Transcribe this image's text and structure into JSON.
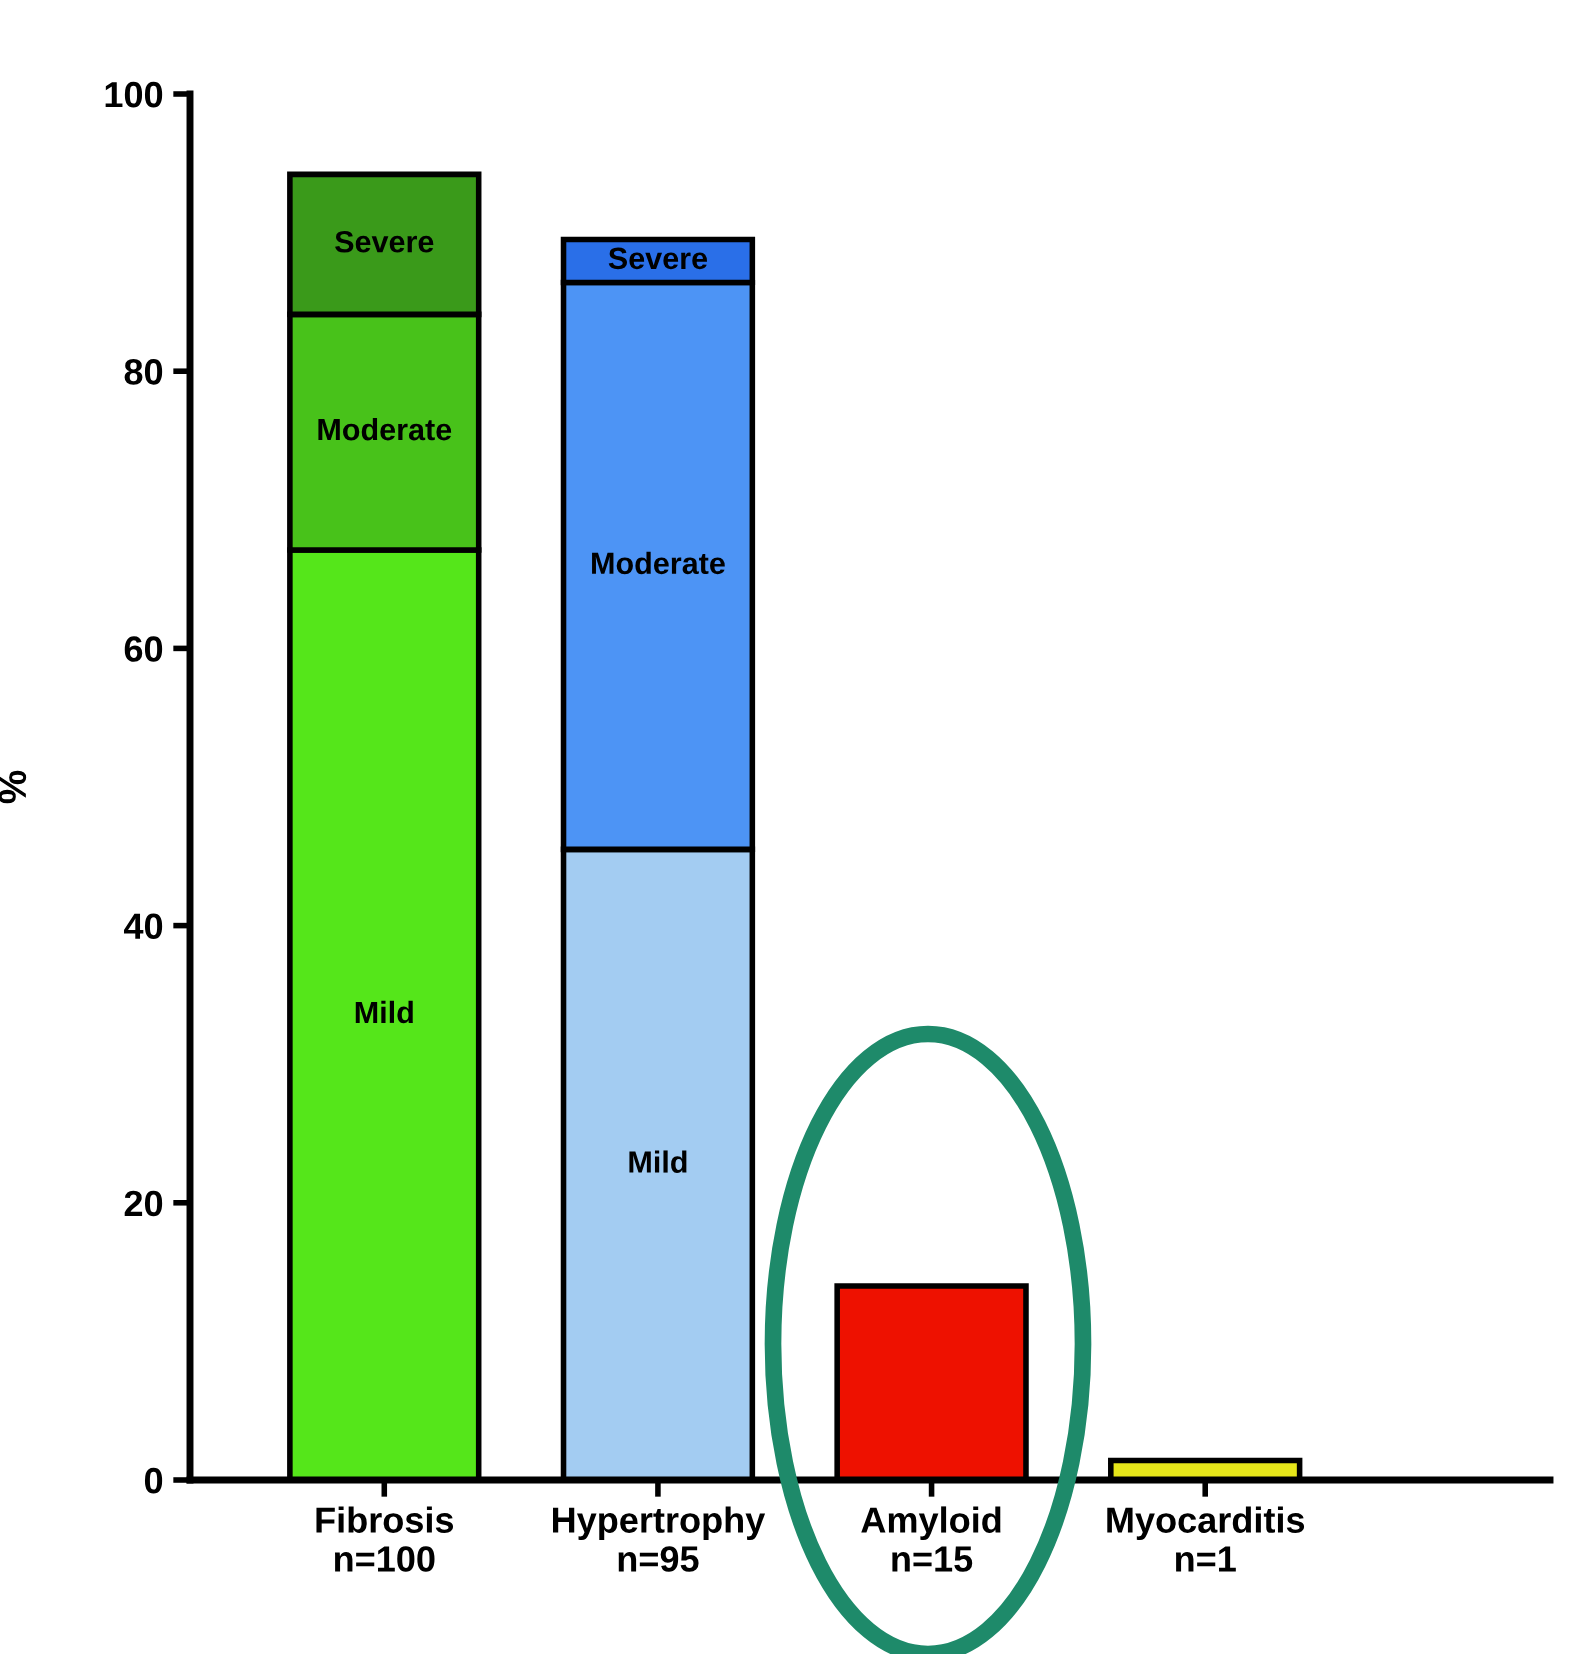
{
  "chart_data": {
    "type": "bar",
    "stacked": true,
    "ylabel": "%",
    "categories": [
      "Fibrosis\nn=100",
      "Hypertrophy\nn=95",
      "Amyloid\nn=15",
      "Myocarditis\nn=1"
    ],
    "series": [
      {
        "colors": [
          "#55e61a",
          "#a3ccf2",
          "#ee1100",
          "#e6e61a"
        ],
        "values": [
          67.1,
          45.5,
          14.0,
          1.4
        ],
        "value_labels": [
          "Mild",
          "Mild",
          null,
          null
        ]
      },
      {
        "colors": [
          "#48c21a",
          "#4d94f5",
          null,
          null
        ],
        "values": [
          17.0,
          40.9,
          null,
          null
        ],
        "value_labels": [
          "Moderate",
          "Moderate",
          null,
          null
        ]
      },
      {
        "colors": [
          "#3a9a1a",
          "#2a6fe8",
          null,
          null
        ],
        "values": [
          10.1,
          3.1,
          null,
          null
        ],
        "value_labels": [
          "Severe",
          "Severe",
          null,
          null
        ]
      }
    ],
    "ylim": [
      0,
      100
    ],
    "yticks": [
      0,
      20,
      40,
      60,
      80,
      100
    ],
    "grid": false,
    "legend": false
  }
}
